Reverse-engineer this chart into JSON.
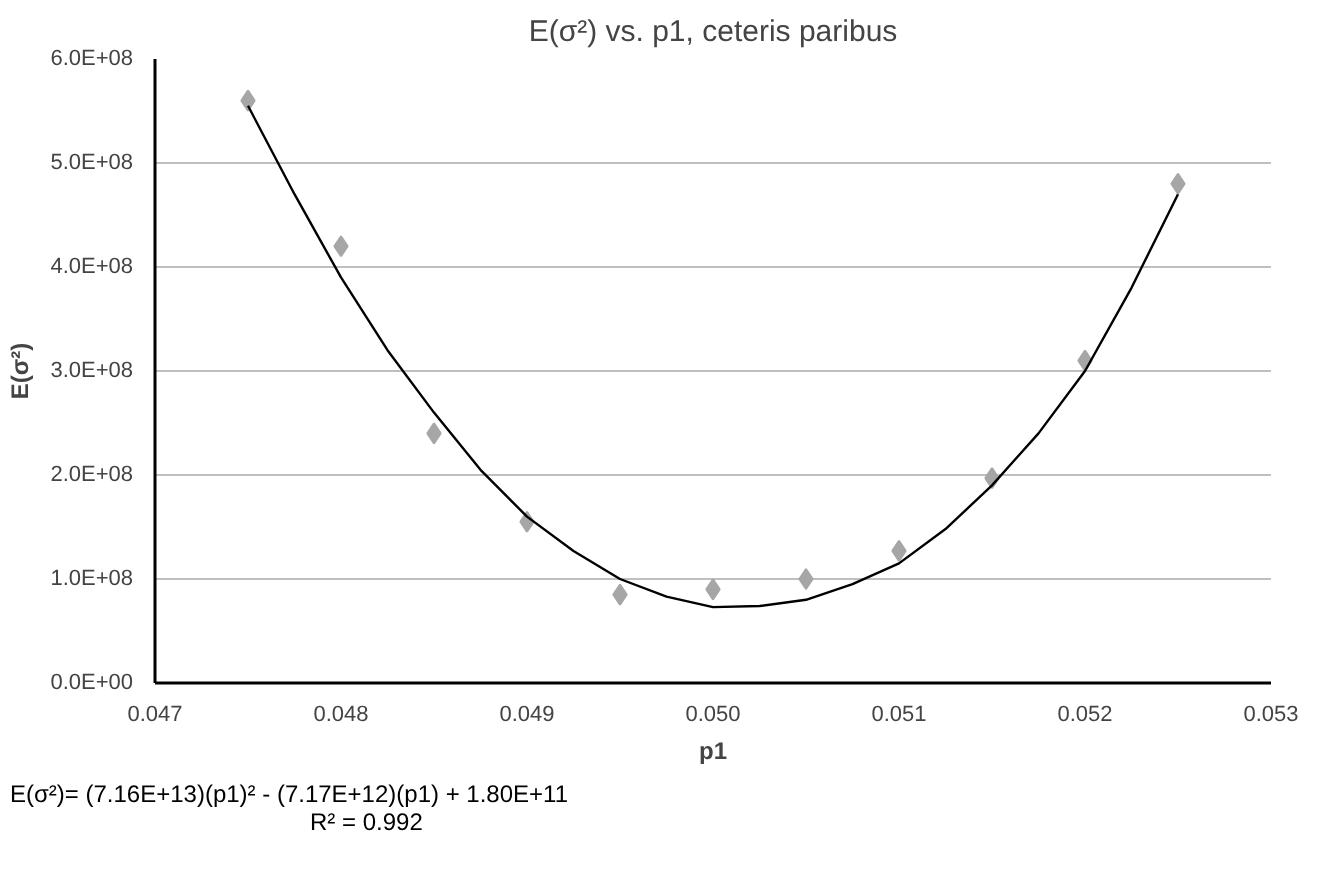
{
  "chart_data": {
    "type": "scatter",
    "title": "E(σ²) vs. p1, ceteris paribus",
    "xlabel": "p1",
    "ylabel": "E(σ²)",
    "series": [
      {
        "color": "#a6a6a6",
        "marker": "diamond",
        "x": [
          0.0475,
          0.048,
          0.0485,
          0.049,
          0.0495,
          0.05,
          0.0505,
          0.051,
          0.0515,
          0.052,
          0.0525
        ],
        "values": [
          560000000,
          420000000,
          240000000,
          155000000,
          85000000,
          90000000,
          100000000,
          127000000,
          197000000,
          310000000,
          480000000
        ]
      },
      {
        "type": "line",
        "color": "#000000",
        "marker": "none",
        "x": [
          0.0475,
          0.04775,
          0.048,
          0.04825,
          0.0485,
          0.04875,
          0.049,
          0.04925,
          0.0495,
          0.04975,
          0.05,
          0.05025,
          0.0505,
          0.05075,
          0.051,
          0.05125,
          0.0515,
          0.05175,
          0.052,
          0.05225,
          0.0525
        ],
        "values": [
          555000000,
          470000000,
          390000000,
          320000000,
          260000000,
          205000000,
          160000000,
          127000000,
          100000000,
          83000000,
          73000000,
          74000000,
          80000000,
          95000000,
          115000000,
          148000000,
          190000000,
          240000000,
          300000000,
          380000000,
          470000000
        ]
      }
    ],
    "xlim": [
      0.047,
      0.053
    ],
    "ylim": [
      0,
      600000000
    ],
    "xticks": [
      {
        "value": 0.047,
        "label": "0.047"
      },
      {
        "value": 0.048,
        "label": "0.048"
      },
      {
        "value": 0.049,
        "label": "0.049"
      },
      {
        "value": 0.05,
        "label": "0.050"
      },
      {
        "value": 0.051,
        "label": "0.051"
      },
      {
        "value": 0.052,
        "label": "0.052"
      },
      {
        "value": 0.053,
        "label": "0.053"
      }
    ],
    "yticks": [
      {
        "value": 0,
        "label": "0.0E+00"
      },
      {
        "value": 100000000,
        "label": "1.0E+08"
      },
      {
        "value": 200000000,
        "label": "2.0E+08"
      },
      {
        "value": 300000000,
        "label": "3.0E+08"
      },
      {
        "value": 400000000,
        "label": "4.0E+08"
      },
      {
        "value": 500000000,
        "label": "5.0E+08"
      },
      {
        "value": 600000000,
        "label": "6.0E+08"
      }
    ],
    "grid": "y",
    "annotations": [
      "E(σ²)= (7.16E+13)(p1)² - (7.17E+12)(p1) + 1.80E+11",
      "R² = 0.992"
    ]
  }
}
